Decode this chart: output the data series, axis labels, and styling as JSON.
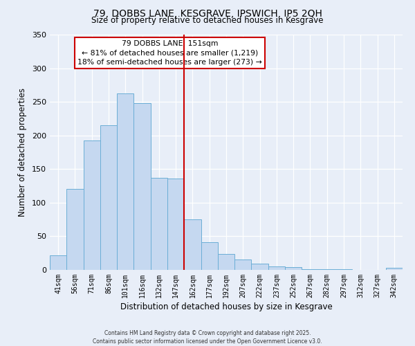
{
  "title": "79, DOBBS LANE, KESGRAVE, IPSWICH, IP5 2QH",
  "subtitle": "Size of property relative to detached houses in Kesgrave",
  "xlabel": "Distribution of detached houses by size in Kesgrave",
  "ylabel": "Number of detached properties",
  "bar_labels": [
    "41sqm",
    "56sqm",
    "71sqm",
    "86sqm",
    "101sqm",
    "116sqm",
    "132sqm",
    "147sqm",
    "162sqm",
    "177sqm",
    "192sqm",
    "207sqm",
    "222sqm",
    "237sqm",
    "252sqm",
    "267sqm",
    "282sqm",
    "297sqm",
    "312sqm",
    "327sqm",
    "342sqm"
  ],
  "bar_values": [
    22,
    120,
    193,
    215,
    263,
    248,
    137,
    136,
    75,
    41,
    24,
    15,
    9,
    5,
    4,
    1,
    1,
    1,
    0,
    0,
    3
  ],
  "bar_color": "#c5d8f0",
  "bar_edge_color": "#6baed6",
  "vline_color": "#cc0000",
  "annotation_title": "79 DOBBS LANE: 151sqm",
  "annotation_line1": "← 81% of detached houses are smaller (1,219)",
  "annotation_line2": "18% of semi-detached houses are larger (273) →",
  "annotation_box_color": "#ffffff",
  "annotation_box_edge": "#cc0000",
  "ylim": [
    0,
    350
  ],
  "yticks": [
    0,
    50,
    100,
    150,
    200,
    250,
    300,
    350
  ],
  "bg_color": "#e8eef8",
  "grid_color": "#ffffff",
  "footer_line1": "Contains HM Land Registry data © Crown copyright and database right 2025.",
  "footer_line2": "Contains public sector information licensed under the Open Government Licence v3.0."
}
